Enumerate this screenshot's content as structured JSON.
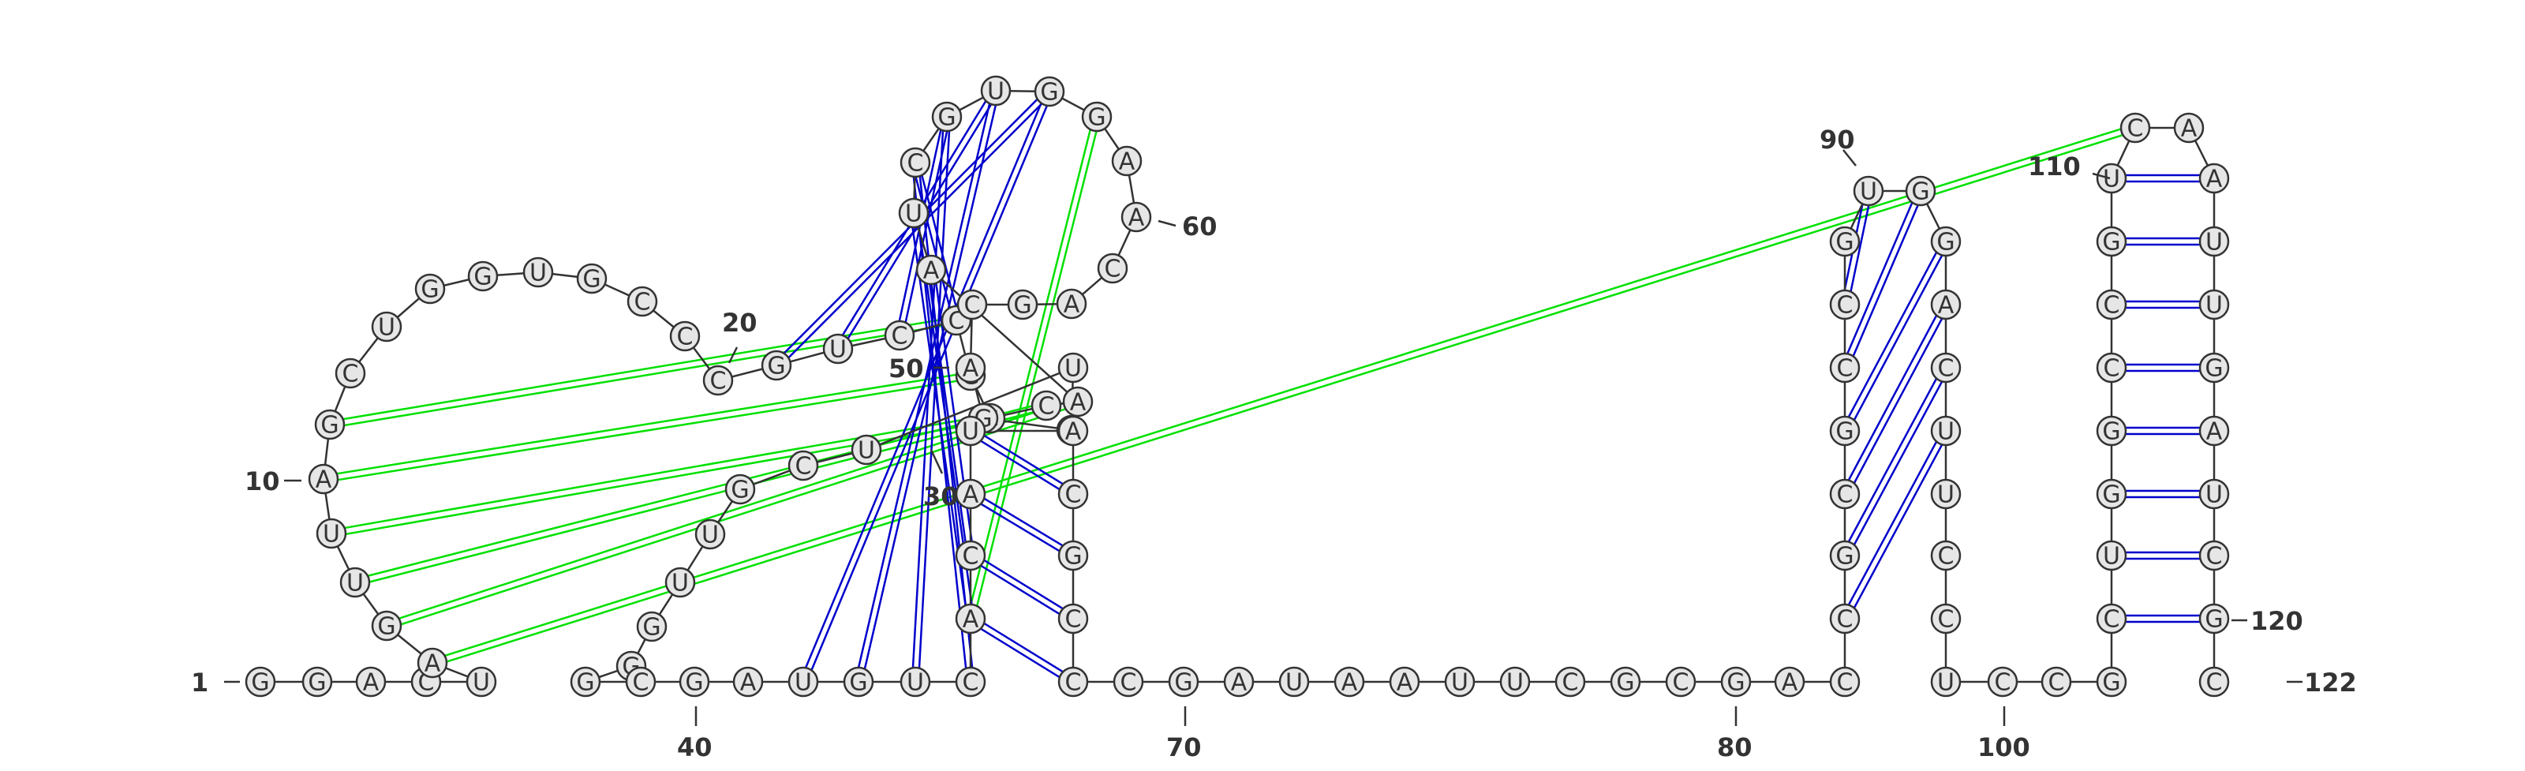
{
  "sequence": "GGACUAGUUAGCUGGUGCCCGUCCGGCAAUCGUGGAACAGCAGUUUCGUUGGGCGAUGUCACAUACGCCCGAUAAUUCGCGACCGCGCCGUGGACUUCCUCCGCUGGCCGUCAAUUGAUCGC",
  "loop_region_sequence": "GGACUAGUUAGCUGGUGCCCGUCCGGCAAUCGUGGAACAGCAGUUUCGUUGGGCGAUGUCACAUACG",
  "numbering": {
    "labels": [
      "1",
      "10",
      "20",
      "30",
      "40",
      "50",
      "60",
      "70",
      "80",
      "90",
      "100",
      "110",
      "120",
      "122"
    ]
  },
  "colors": {
    "base_fill": "#e6e6e6",
    "outline": "#333333",
    "canonical_pair": "#0000cc",
    "pseudoknot_pair": "#00e000"
  },
  "pairs": [
    {
      "i": 21,
      "j": 34
    },
    {
      "i": 22,
      "j": 33
    },
    {
      "i": 23,
      "j": 32
    },
    {
      "i": 24,
      "j": 31
    },
    {
      "i": 29,
      "j": 62
    },
    {
      "i": 30,
      "j": 61
    },
    {
      "i": 31,
      "j": 60
    },
    {
      "i": 32,
      "j": 59
    },
    {
      "i": 33,
      "j": 58
    },
    {
      "i": 34,
      "j": 57
    },
    {
      "i": 61,
      "j": 69
    },
    {
      "i": 62,
      "j": 68
    },
    {
      "i": 63,
      "j": 67
    },
    {
      "i": 64,
      "j": 66
    },
    {
      "i": 84,
      "j": 96
    },
    {
      "i": 85,
      "j": 95
    },
    {
      "i": 86,
      "j": 94
    },
    {
      "i": 87,
      "j": 93
    },
    {
      "i": 88,
      "j": 92
    },
    {
      "i": 89,
      "j": 91
    },
    {
      "i": 104,
      "j": 121
    },
    {
      "i": 105,
      "j": 120
    },
    {
      "i": 106,
      "j": 119
    },
    {
      "i": 107,
      "j": 118
    },
    {
      "i": 108,
      "j": 117
    },
    {
      "i": 109,
      "j": 116
    },
    {
      "i": 110,
      "j": 115
    },
    {
      "i": 111,
      "j": 114
    }
  ],
  "pseudoknots": [
    {
      "i": 6,
      "j": 112
    },
    {
      "i": 7,
      "j": 28
    },
    {
      "i": 8,
      "j": 27
    },
    {
      "i": 9,
      "j": 26
    },
    {
      "i": 10,
      "j": 25
    },
    {
      "i": 11,
      "j": 24
    },
    {
      "i": 35,
      "j": 61
    }
  ]
}
